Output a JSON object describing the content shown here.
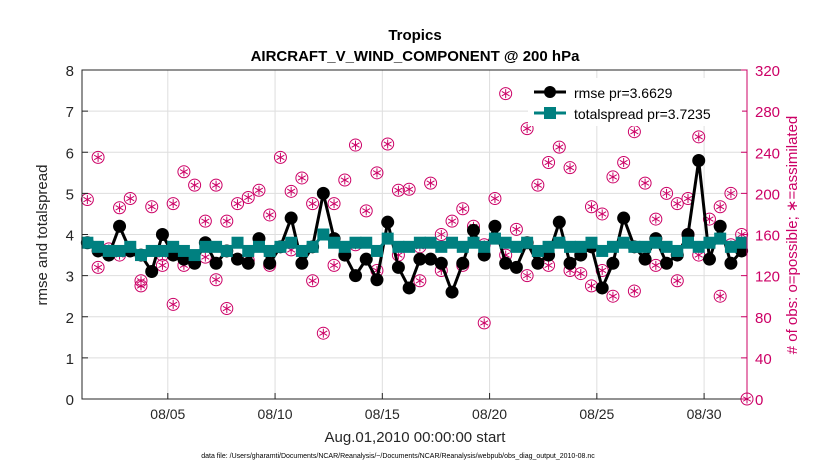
{
  "chart_data": {
    "type": "line",
    "title": "Tropics",
    "subtitle": "AIRCRAFT_V_WIND_COMPONENT @ 200 hPa",
    "xlabel": "Aug.01,2010 00:00:00 start",
    "ylabel_left": "rmse and totalspread",
    "ylabel_right": "# of obs: o=possible; ∗=assimilated",
    "footnote": "data file: /Users/gharamti/Documents/NCAR/Reanalysis/~/Documents/NCAR/Reanalysis/webpub/obs_diag_output_2010-08.nc",
    "xlim": [
      1,
      32
    ],
    "ylim_left": [
      0,
      8
    ],
    "ylim_right": [
      0,
      320
    ],
    "x_ticks": [
      5,
      10,
      15,
      20,
      25,
      30
    ],
    "x_tick_labels": [
      "08/05",
      "08/10",
      "08/15",
      "08/20",
      "08/25",
      "08/30"
    ],
    "y_left_ticks": [
      0,
      1,
      2,
      3,
      4,
      5,
      6,
      7,
      8
    ],
    "y_left_tick_labels": [
      "0",
      "1",
      "2",
      "3",
      "4",
      "5",
      "6",
      "7",
      "8"
    ],
    "y_right_ticks": [
      0,
      40,
      80,
      120,
      160,
      200,
      240,
      280,
      320
    ],
    "y_right_tick_labels": [
      "0",
      "40",
      "80",
      "120",
      "160",
      "200",
      "240",
      "280",
      "320"
    ],
    "legend_position": "top-right",
    "series": [
      {
        "name": "rmse pr=3.6629",
        "color": "#000000",
        "marker": "circle",
        "axis": "left",
        "x": [
          1.25,
          1.75,
          2.25,
          2.75,
          3.25,
          3.75,
          4.25,
          4.75,
          5.25,
          5.75,
          6.25,
          6.75,
          7.25,
          7.75,
          8.25,
          8.75,
          9.25,
          9.75,
          10.25,
          10.75,
          11.25,
          11.75,
          12.25,
          12.75,
          13.25,
          13.75,
          14.25,
          14.75,
          15.25,
          15.75,
          16.25,
          16.75,
          17.25,
          17.75,
          18.25,
          18.75,
          19.25,
          19.75,
          20.25,
          20.75,
          21.25,
          21.75,
          22.25,
          22.75,
          23.25,
          23.75,
          24.25,
          24.75,
          25.25,
          25.75,
          26.25,
          26.75,
          27.25,
          27.75,
          28.25,
          28.75,
          29.25,
          29.75,
          30.25,
          30.75,
          31.25,
          31.75
        ],
        "values": [
          3.8,
          3.6,
          3.5,
          4.2,
          3.6,
          3.5,
          3.1,
          4.0,
          3.5,
          3.4,
          3.3,
          3.8,
          3.3,
          3.6,
          3.4,
          3.3,
          3.9,
          3.3,
          3.7,
          4.4,
          3.3,
          3.7,
          5.0,
          3.9,
          3.5,
          3.0,
          3.4,
          2.9,
          4.3,
          3.2,
          2.7,
          3.4,
          3.4,
          3.3,
          2.6,
          3.3,
          4.1,
          3.5,
          4.2,
          3.3,
          3.2,
          3.8,
          3.3,
          3.5,
          4.3,
          3.3,
          3.5,
          3.7,
          2.7,
          3.3,
          4.4,
          3.7,
          3.4,
          3.9,
          3.3,
          3.5,
          4.0,
          5.8,
          3.4,
          4.2,
          3.3,
          3.6
        ]
      },
      {
        "name": "totalspread pr=3.7235",
        "color": "#008080",
        "marker": "square",
        "axis": "left",
        "x": [
          1.25,
          1.75,
          2.25,
          2.75,
          3.25,
          3.75,
          4.25,
          4.75,
          5.25,
          5.75,
          6.25,
          6.75,
          7.25,
          7.75,
          8.25,
          8.75,
          9.25,
          9.75,
          10.25,
          10.75,
          11.25,
          11.75,
          12.25,
          12.75,
          13.25,
          13.75,
          14.25,
          14.75,
          15.25,
          15.75,
          16.25,
          16.75,
          17.25,
          17.75,
          18.25,
          18.75,
          19.25,
          19.75,
          20.25,
          20.75,
          21.25,
          21.75,
          22.25,
          22.75,
          23.25,
          23.75,
          24.25,
          24.75,
          25.25,
          25.75,
          26.25,
          26.75,
          27.25,
          27.75,
          28.25,
          28.75,
          29.25,
          29.75,
          30.25,
          30.75,
          31.25,
          31.75
        ],
        "values": [
          3.8,
          3.7,
          3.6,
          3.6,
          3.7,
          3.5,
          3.6,
          3.6,
          3.7,
          3.6,
          3.5,
          3.7,
          3.7,
          3.6,
          3.8,
          3.6,
          3.7,
          3.6,
          3.7,
          3.8,
          3.6,
          3.7,
          4.0,
          3.8,
          3.7,
          3.8,
          3.8,
          3.6,
          3.9,
          3.7,
          3.7,
          3.8,
          3.8,
          3.7,
          3.8,
          3.7,
          3.8,
          3.7,
          3.9,
          3.8,
          3.7,
          3.8,
          3.6,
          3.7,
          3.8,
          3.7,
          3.7,
          3.8,
          3.6,
          3.7,
          3.8,
          3.7,
          3.7,
          3.8,
          3.7,
          3.6,
          3.8,
          3.7,
          3.8,
          3.9,
          3.7,
          3.8
        ]
      },
      {
        "name": "possible",
        "color": "#cc0066",
        "marker": "circle-open",
        "axis": "right",
        "legend": false,
        "x": [
          1.25,
          1.75,
          2.25,
          2.75,
          3.25,
          3.75,
          4.25,
          4.75,
          5.25,
          5.75,
          6.25,
          6.75,
          7.25,
          7.75,
          8.25,
          8.75,
          9.25,
          9.75,
          10.25,
          10.75,
          11.25,
          11.75,
          12.25,
          12.75,
          13.25,
          13.75,
          14.25,
          14.75,
          15.25,
          15.75,
          16.25,
          16.75,
          17.25,
          17.75,
          18.25,
          18.75,
          19.25,
          19.75,
          20.25,
          20.75,
          21.25,
          21.75,
          22.25,
          22.75,
          23.25,
          23.75,
          24.25,
          24.75,
          25.25,
          25.75,
          26.25,
          26.75,
          27.25,
          27.75,
          28.25,
          28.75,
          29.25,
          29.75,
          30.25,
          30.75,
          31.25,
          31.75
        ],
        "values": [
          194,
          235,
          146,
          186,
          195,
          115,
          187,
          140,
          190,
          221,
          208,
          173,
          208,
          173,
          190,
          196,
          203,
          179,
          235,
          202,
          215,
          190,
          64,
          190,
          213,
          247,
          183,
          220,
          248,
          203,
          204,
          148,
          210,
          125,
          173,
          185,
          168,
          74,
          195,
          297,
          165,
          263,
          208,
          230,
          245,
          225,
          122,
          187,
          180,
          216,
          230,
          260,
          210,
          175,
          200,
          190,
          195,
          255,
          272,
          187,
          200,
          160
        ],
        "lows": {
          "x": [
            1.75,
            2.75,
            3.75,
            4.75,
            5.25,
            5.75,
            6.75,
            7.25,
            7.75,
            8.75,
            9.75,
            10.75,
            11.75,
            12.75,
            13.75,
            14.75,
            15.75,
            16.75,
            17.75,
            18.75,
            19.75,
            20.75,
            21.75,
            22.75,
            23.75,
            24.75,
            25.25,
            25.75,
            26.75,
            27.75,
            28.75,
            29.25,
            29.75,
            30.25,
            30.75,
            31.25
          ],
          "values": [
            128,
            140,
            110,
            130,
            92,
            130,
            138,
            116,
            88,
            135,
            130,
            145,
            115,
            130,
            150,
            125,
            140,
            115,
            160,
            130,
            150,
            140,
            120,
            130,
            125,
            110,
            125,
            100,
            105,
            130,
            115,
            160,
            140,
            175,
            100,
            150
          ]
        }
      },
      {
        "name": "assimilated",
        "color": "#cc0066",
        "marker": "asterisk",
        "axis": "right",
        "legend": false,
        "x": [
          1.25,
          1.75,
          2.25,
          2.75,
          3.25,
          3.75,
          4.25,
          4.75,
          5.25,
          5.75,
          6.25,
          6.75,
          7.25,
          7.75,
          8.25,
          8.75,
          9.25,
          9.75,
          10.25,
          10.75,
          11.25,
          11.75,
          12.25,
          12.75,
          13.25,
          13.75,
          14.25,
          14.75,
          15.25,
          15.75,
          16.25,
          16.75,
          17.25,
          17.75,
          18.25,
          18.75,
          19.25,
          19.75,
          20.25,
          20.75,
          21.25,
          21.75,
          22.25,
          22.75,
          23.25,
          23.75,
          24.25,
          24.75,
          25.25,
          25.75,
          26.25,
          26.75,
          27.25,
          27.75,
          28.25,
          28.75,
          29.25,
          29.75,
          30.25,
          30.75,
          31.25,
          31.75
        ],
        "values": [
          194,
          235,
          146,
          186,
          195,
          115,
          187,
          140,
          190,
          221,
          208,
          173,
          208,
          173,
          190,
          196,
          203,
          179,
          235,
          202,
          215,
          190,
          64,
          190,
          213,
          247,
          183,
          220,
          248,
          203,
          204,
          148,
          210,
          125,
          173,
          185,
          168,
          74,
          195,
          297,
          165,
          263,
          208,
          230,
          245,
          225,
          122,
          187,
          180,
          216,
          230,
          260,
          210,
          175,
          200,
          190,
          195,
          255,
          272,
          187,
          200,
          160
        ],
        "lows": {
          "x": [
            1.75,
            2.75,
            3.75,
            4.75,
            5.25,
            5.75,
            6.75,
            7.25,
            7.75,
            8.75,
            9.75,
            10.75,
            11.75,
            12.75,
            13.75,
            14.75,
            15.75,
            16.75,
            17.75,
            18.75,
            19.75,
            20.75,
            21.75,
            22.75,
            23.75,
            24.75,
            25.25,
            25.75,
            26.75,
            27.75,
            28.75,
            29.25,
            29.75,
            30.25,
            30.75,
            31.25
          ],
          "values": [
            128,
            140,
            110,
            130,
            92,
            130,
            138,
            116,
            88,
            135,
            130,
            145,
            115,
            130,
            150,
            125,
            140,
            115,
            160,
            130,
            150,
            140,
            120,
            130,
            125,
            110,
            125,
            100,
            105,
            130,
            115,
            160,
            140,
            175,
            100,
            150
          ]
        }
      }
    ],
    "extra_point": {
      "x": 32,
      "value": 0
    }
  }
}
